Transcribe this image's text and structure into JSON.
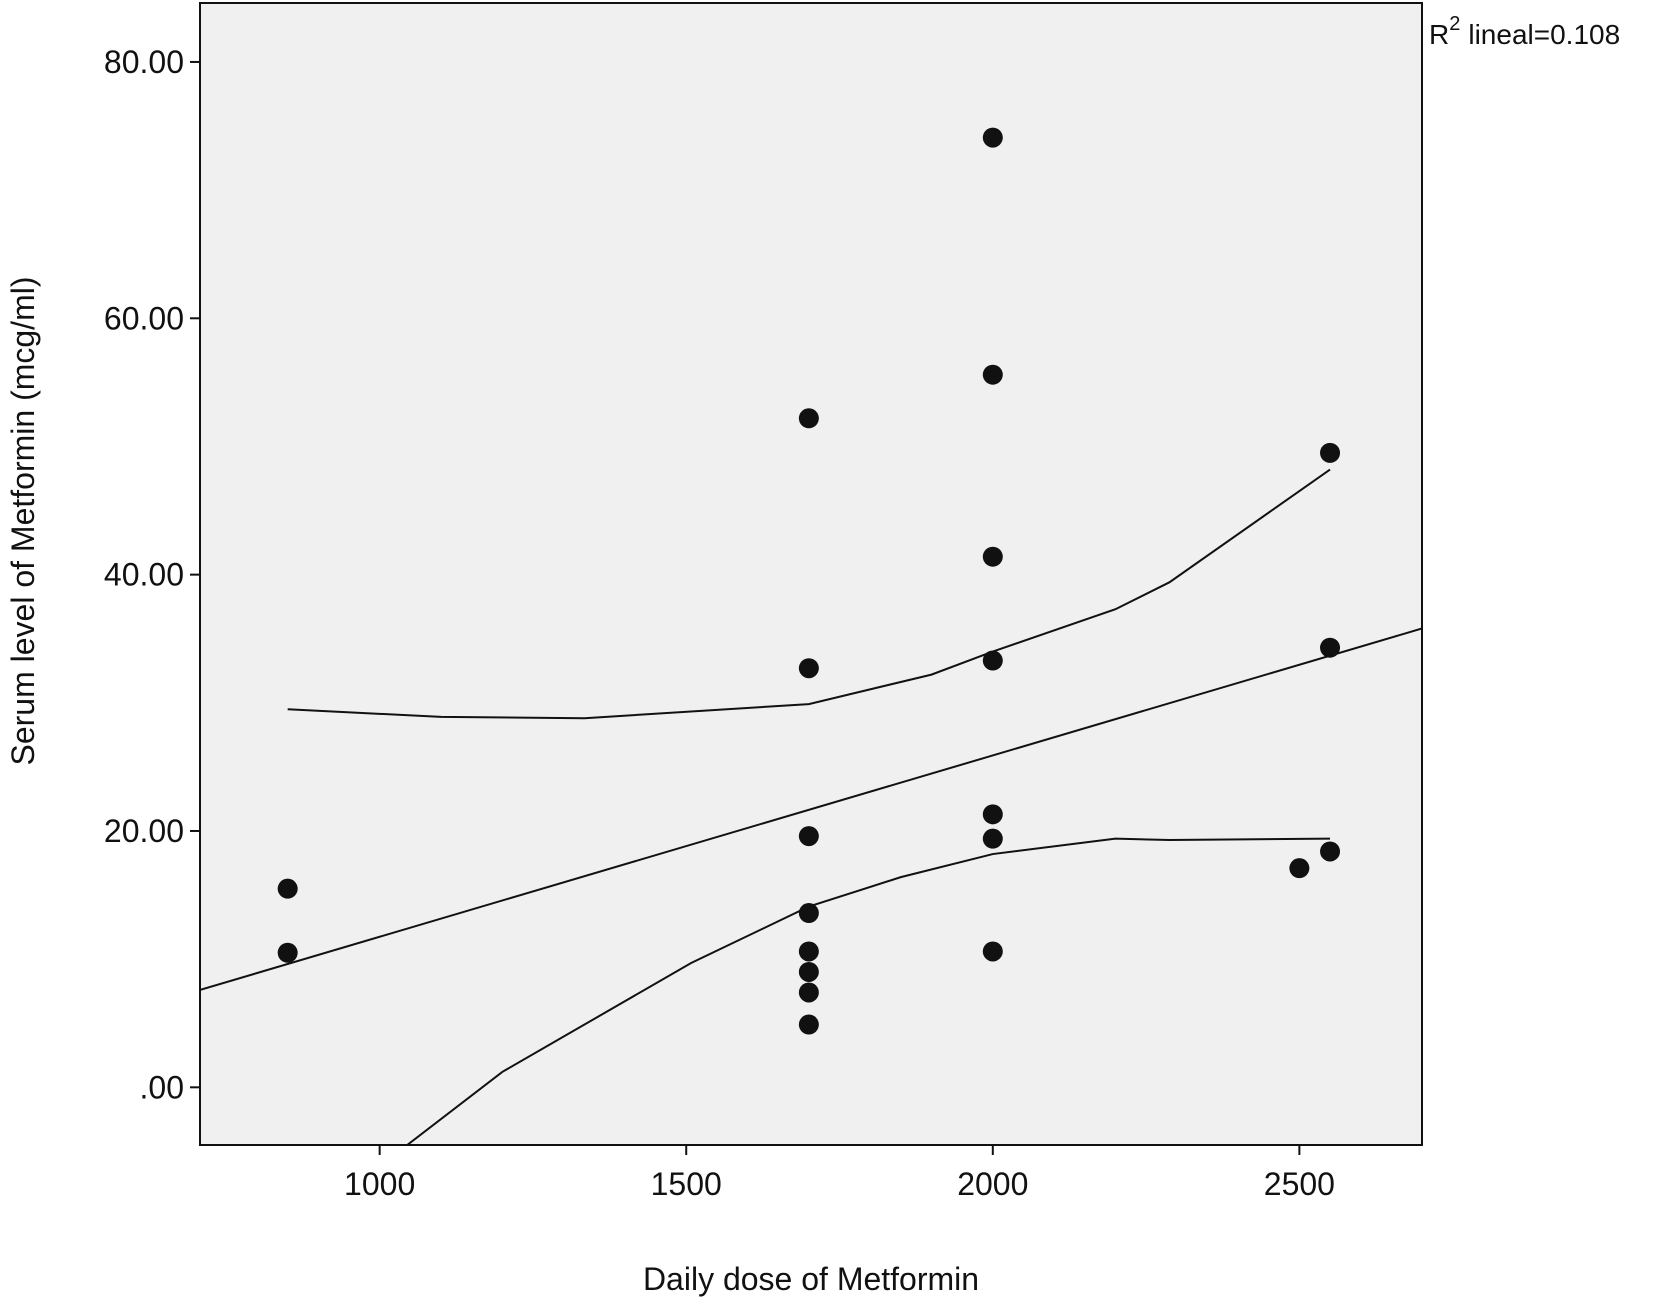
{
  "chart_data": {
    "type": "scatter",
    "xlabel": "Daily dose of Metformin",
    "ylabel": "Serum level of Metformin  (mcg/ml)",
    "annotation": [
      "R",
      "2",
      "lineal=0.108"
    ],
    "xlim": [
      707,
      2700
    ],
    "ylim": [
      -4.5,
      84.6
    ],
    "xticks": [
      1000,
      1500,
      2000,
      2500
    ],
    "yticks": [
      {
        "value": 0,
        "label": ".00"
      },
      {
        "value": 20,
        "label": "20.00"
      },
      {
        "value": 40,
        "label": "40.00"
      },
      {
        "value": 60,
        "label": "60.00"
      },
      {
        "value": 80,
        "label": "80.00"
      }
    ],
    "background": "#f0f0f0",
    "series": [
      {
        "kind": "marker",
        "color": "#111111",
        "x": [
          850,
          850,
          1700,
          1700,
          1700,
          1700,
          1700,
          1700,
          1700,
          1700,
          2000,
          2000,
          2000,
          2000,
          2000,
          2000,
          2000,
          2500,
          2550,
          2550,
          2550
        ],
        "values": [
          15.5,
          10.5,
          52.2,
          32.7,
          19.6,
          13.6,
          10.6,
          9.0,
          7.4,
          4.9,
          74.1,
          55.6,
          41.4,
          33.3,
          21.3,
          19.4,
          10.6,
          17.1,
          49.5,
          34.3,
          18.4
        ]
      },
      {
        "kind": "line",
        "color": "#111111",
        "x": [
          707,
          2700
        ],
        "values": [
          7.6,
          35.8
        ]
      },
      {
        "kind": "line",
        "color": "#111111",
        "x": [
          850,
          1100,
          1334,
          1700,
          1900,
          2000,
          2200,
          2288,
          2550
        ],
        "values": [
          29.5,
          28.9,
          28.8,
          29.9,
          32.2,
          34.0,
          37.3,
          39.4,
          48.2
        ]
      },
      {
        "kind": "line",
        "color": "#111111",
        "x": [
          1045,
          1200,
          1508,
          1700,
          1850,
          2000,
          2200,
          2288,
          2550
        ],
        "values": [
          -4.5,
          1.2,
          9.7,
          14.1,
          16.4,
          18.2,
          19.4,
          19.3,
          19.4
        ]
      }
    ]
  }
}
